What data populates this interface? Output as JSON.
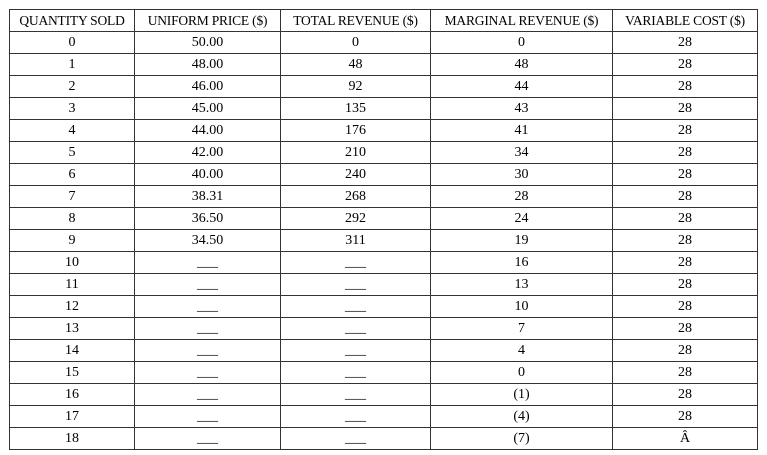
{
  "table": {
    "headers": [
      "QUANTITY SOLD",
      "UNIFORM PRICE ($)",
      "TOTAL REVENUE ($)",
      "MARGINAL REVENUE ($)",
      "VARIABLE COST ($)"
    ],
    "rows": [
      [
        "0",
        "50.00",
        "0",
        "0",
        "28"
      ],
      [
        "1",
        "48.00",
        "48",
        "48",
        "28"
      ],
      [
        "2",
        "46.00",
        "92",
        "44",
        "28"
      ],
      [
        "3",
        "45.00",
        "135",
        "43",
        "28"
      ],
      [
        "4",
        "44.00",
        "176",
        "41",
        "28"
      ],
      [
        "5",
        "42.00",
        "210",
        "34",
        "28"
      ],
      [
        "6",
        "40.00",
        "240",
        "30",
        "28"
      ],
      [
        "7",
        "38.31",
        "268",
        "28",
        "28"
      ],
      [
        "8",
        "36.50",
        "292",
        "24",
        "28"
      ],
      [
        "9",
        "34.50",
        "311",
        "19",
        "28"
      ],
      [
        "10",
        "___",
        "___",
        "16",
        "28"
      ],
      [
        "11",
        "___",
        "___",
        "13",
        "28"
      ],
      [
        "12",
        "___",
        "___",
        "10",
        "28"
      ],
      [
        "13",
        "___",
        "___",
        "7",
        "28"
      ],
      [
        "14",
        "___",
        "___",
        "4",
        "28"
      ],
      [
        "15",
        "___",
        "___",
        "0",
        "28"
      ],
      [
        "16",
        "___",
        "___",
        "(1)",
        "28"
      ],
      [
        "17",
        "___",
        "___",
        "(4)",
        "28"
      ],
      [
        "18",
        "___",
        "___",
        "(7)",
        "Â"
      ]
    ]
  }
}
